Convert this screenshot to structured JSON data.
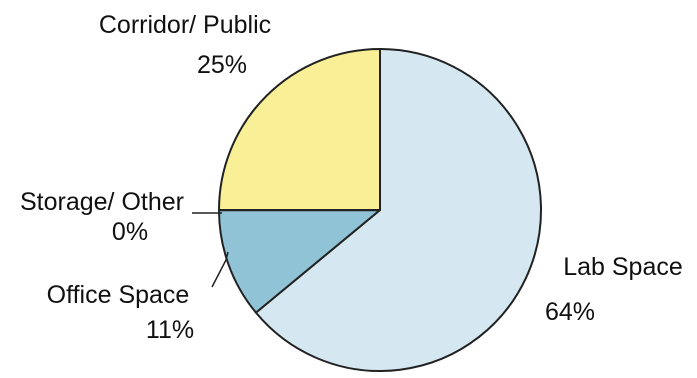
{
  "chart_data": {
    "type": "pie",
    "title": "",
    "slices": [
      {
        "label": "Lab Space",
        "value": 64,
        "value_label": "64%",
        "color": "#d5e8f1"
      },
      {
        "label": "Office Space",
        "value": 11,
        "value_label": "11%",
        "color": "#8fc3d5"
      },
      {
        "label": "Storage/ Other",
        "value": 0,
        "value_label": "0%",
        "color": "#8fc3d5"
      },
      {
        "label": "Corridor/ Public",
        "value": 25,
        "value_label": "25%",
        "color": "#f8ef97"
      }
    ],
    "start_angle_deg": 0,
    "direction": "clockwise",
    "outline_color": "#222222"
  }
}
